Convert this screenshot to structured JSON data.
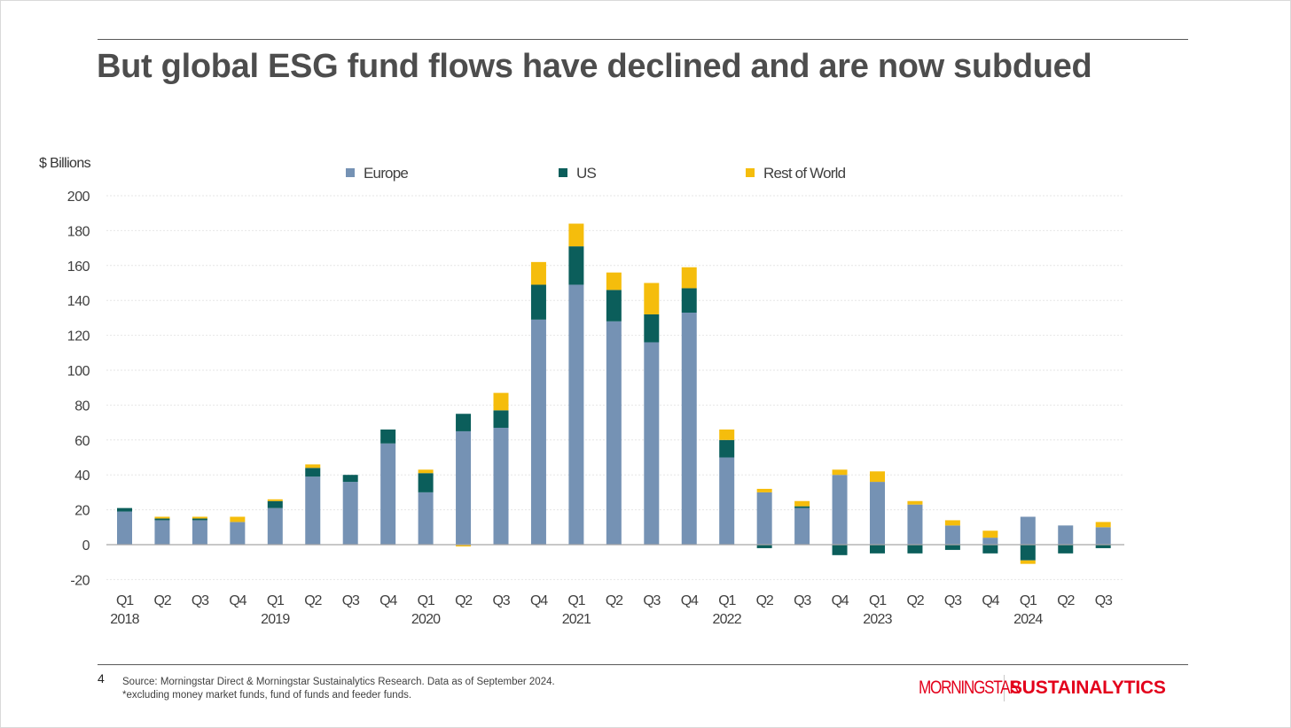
{
  "slide": {
    "title": "But global ESG fund flows have declined and are now subdued",
    "page_number": "4",
    "source_line1": "Source: Morningstar Direct & Morningstar Sustainalytics Research. Data as of September 2024.",
    "source_line2": "*excluding money market funds, fund of funds and feeder funds.",
    "logo_left": "MORNINGSTAR",
    "logo_right": "SUSTAINALYTICS"
  },
  "colors": {
    "europe": "#7592b4",
    "us": "#0b5e5b",
    "row": "#f5bd0c",
    "grid": "#e6e6e6",
    "axis": "#a6a6a6",
    "text": "#404040",
    "brand_red": "#e3001b"
  },
  "chart_data": {
    "type": "bar",
    "stacked": true,
    "title": "",
    "ylabel": "$ Billions",
    "ylim": [
      -20,
      200
    ],
    "yticks": [
      200,
      180,
      160,
      140,
      120,
      100,
      80,
      60,
      40,
      20,
      0,
      -20
    ],
    "grid": true,
    "legend_position": "top",
    "categories": [
      "Q1",
      "Q2",
      "Q3",
      "Q4",
      "Q1",
      "Q2",
      "Q3",
      "Q4",
      "Q1",
      "Q2",
      "Q3",
      "Q4",
      "Q1",
      "Q2",
      "Q3",
      "Q4",
      "Q1",
      "Q2",
      "Q3",
      "Q4",
      "Q1",
      "Q2",
      "Q3",
      "Q4",
      "Q1",
      "Q2",
      "Q3"
    ],
    "years": [
      "2018",
      "",
      "",
      "",
      "2019",
      "",
      "",
      "",
      "2020",
      "",
      "",
      "",
      "2021",
      "",
      "",
      "",
      "2022",
      "",
      "",
      "",
      "2023",
      "",
      "",
      "",
      "2024",
      "",
      ""
    ],
    "series": [
      {
        "name": "Europe",
        "values": [
          19,
          14,
          14,
          13,
          21,
          39,
          36,
          58,
          30,
          65,
          67,
          129,
          149,
          128,
          116,
          133,
          50,
          30,
          21,
          40,
          36,
          23,
          11,
          4,
          16,
          11,
          10
        ]
      },
      {
        "name": "US",
        "values": [
          2,
          1,
          1,
          0,
          4,
          5,
          4,
          8,
          11,
          10,
          10,
          20,
          22,
          18,
          16,
          14,
          10,
          -2,
          1,
          -6,
          -5,
          -5,
          -3,
          -5,
          -9,
          -5,
          -2
        ]
      },
      {
        "name": "Rest of World",
        "values": [
          0,
          1,
          1,
          3,
          1,
          2,
          0,
          0,
          2,
          -1,
          10,
          13,
          13,
          10,
          18,
          12,
          6,
          2,
          3,
          3,
          6,
          2,
          3,
          4,
          -2,
          0,
          3
        ]
      }
    ]
  }
}
